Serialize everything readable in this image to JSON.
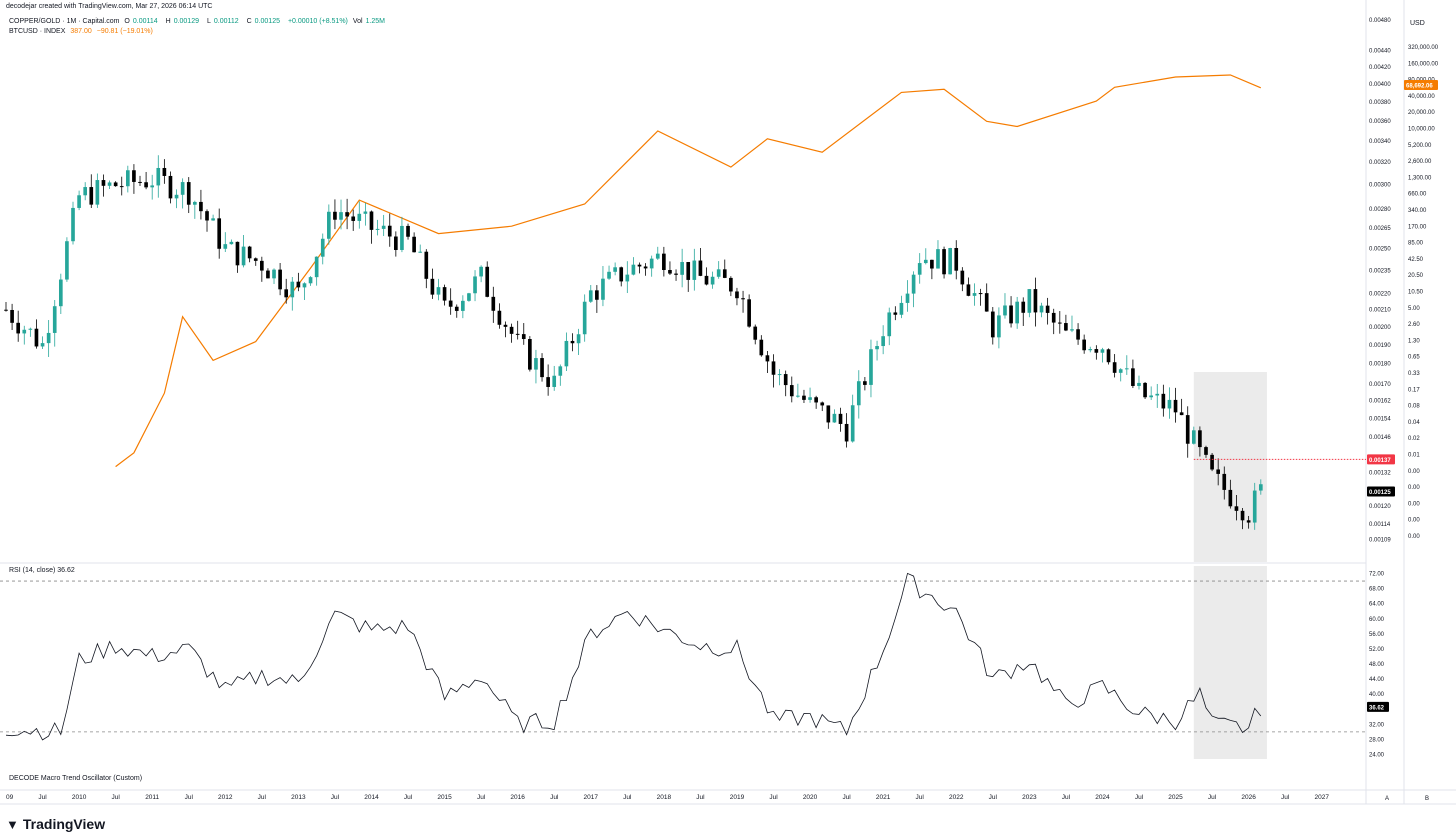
{
  "header": {
    "credit": "decodejar created with TradingView.com, Mar 27, 2026 06:14 UTC"
  },
  "legend": {
    "main_symbol": "COPPER/GOLD · 1M · Capital.com",
    "o_label": "O",
    "o_value": "0.00114",
    "h_label": "H",
    "h_value": "0.00129",
    "l_label": "L",
    "l_value": "0.00112",
    "c_label": "C",
    "c_value": "0.00125",
    "change": "+0.00010 (+8.51%)",
    "vol_label": "Vol",
    "vol_value": "1.25M",
    "btc_symbol": "BTCUSD · INDEX",
    "btc_value": "387.00",
    "btc_change": "−90.81 (−19.01%)"
  },
  "usd_button": "USD",
  "rsi_label": "RSI (14, close) 36.62",
  "osc_label": "DECODE Macro Trend Oscillator (Custom)",
  "footer_logo": "TradingView",
  "scale_buttons": [
    "A",
    "B"
  ],
  "colors": {
    "up": "#26a69a",
    "down": "#000000",
    "btc": "#f57c00",
    "price_tag": "#000000",
    "resistance": "#f23645",
    "highlight": "#ebebeb"
  },
  "price_tags": {
    "btc_last": "68,692.06",
    "resistance": "0.00137",
    "last": "0.00125",
    "rsi_last": "36.62"
  },
  "chart_data": [
    {
      "type": "candlestick",
      "title": "COPPER/GOLD · 1M · Capital.com",
      "x_ticks": [
        "09",
        "Jul",
        "2010",
        "Jul",
        "2011",
        "Jul",
        "2012",
        "Jul",
        "2013",
        "Jul",
        "2014",
        "Jul",
        "2015",
        "Jul",
        "2016",
        "Jul",
        "2017",
        "Jul",
        "2018",
        "Jul",
        "2019",
        "Jul",
        "2020",
        "Jul",
        "2021",
        "Jul",
        "2022",
        "Jul",
        "2023",
        "Jul",
        "2024",
        "Jul",
        "2025",
        "Jul",
        "2026",
        "Jul",
        "2027"
      ],
      "y_ticks": [
        "0.00480",
        "0.00440",
        "0.00420",
        "0.00400",
        "0.00380",
        "0.00360",
        "0.00340",
        "0.00320",
        "0.00300",
        "0.00280",
        "0.00265",
        "0.00250",
        "0.00235",
        "0.00220",
        "0.00210",
        "0.00200",
        "0.00190",
        "0.00180",
        "0.00170",
        "0.00162",
        "0.00154",
        "0.00146",
        "0.00132",
        "0.00120",
        "0.00114",
        "0.00109"
      ],
      "scale": "log",
      "ylim": [
        0.00104,
        0.0048
      ],
      "resistance_level": 0.00137,
      "highlight_range": [
        "2025-04",
        "2026-04"
      ],
      "series": [
        {
          "name": "COPPER/GOLD",
          "approx_monthly_close": [
            [
              "2009-01",
              0.0021
            ],
            [
              "2009-07",
              0.0019
            ],
            [
              "2010-01",
              0.0029
            ],
            [
              "2010-07",
              0.003
            ],
            [
              "2011-01",
              0.00305
            ],
            [
              "2011-07",
              0.00295
            ],
            [
              "2012-01",
              0.0025
            ],
            [
              "2012-07",
              0.0024
            ],
            [
              "2013-01",
              0.0022
            ],
            [
              "2013-07",
              0.0028
            ],
            [
              "2014-01",
              0.00265
            ],
            [
              "2014-07",
              0.00255
            ],
            [
              "2015-01",
              0.0021
            ],
            [
              "2015-07",
              0.0023
            ],
            [
              "2016-01",
              0.0019
            ],
            [
              "2016-07",
              0.0017
            ],
            [
              "2017-01",
              0.0022
            ],
            [
              "2017-07",
              0.00235
            ],
            [
              "2018-01",
              0.00245
            ],
            [
              "2018-07",
              0.0023
            ],
            [
              "2019-01",
              0.00225
            ],
            [
              "2019-07",
              0.00175
            ],
            [
              "2020-01",
              0.0016
            ],
            [
              "2020-07",
              0.0015
            ],
            [
              "2021-01",
              0.002
            ],
            [
              "2021-07",
              0.00245
            ],
            [
              "2022-01",
              0.0024
            ],
            [
              "2022-07",
              0.002
            ],
            [
              "2023-01",
              0.00215
            ],
            [
              "2023-07",
              0.00195
            ],
            [
              "2024-01",
              0.0019
            ],
            [
              "2024-07",
              0.00165
            ],
            [
              "2025-01",
              0.00158
            ],
            [
              "2025-07",
              0.0013
            ],
            [
              "2026-01",
              0.00118
            ],
            [
              "2026-03",
              0.00125
            ]
          ]
        }
      ]
    },
    {
      "type": "line",
      "title": "BTCUSD · INDEX",
      "scale": "log",
      "y_ticks": [
        "320,000.00",
        "160,000.00",
        "80,000.00",
        "40,000.00",
        "20,000.00",
        "10,000.00",
        "5,200.00",
        "2,600.00",
        "1,300.00",
        "660.00",
        "340.00",
        "170.00",
        "85.00",
        "42.50",
        "20.50",
        "10.50",
        "5.00",
        "2.60",
        "1.30",
        "0.65",
        "0.33",
        "0.17",
        "0.08",
        "0.04",
        "0.02",
        "0.01",
        "0.00",
        "0.00",
        "0.00",
        "0.00",
        "0.00",
        "0.00"
      ],
      "series": [
        {
          "name": "BTCUSD · INDEX",
          "x": [
            "2010-07",
            "2010-10",
            "2011-03",
            "2011-06",
            "2011-11",
            "2012-06",
            "2013-03",
            "2013-11",
            "2014-12",
            "2015-12",
            "2016-12",
            "2017-12",
            "2018-12",
            "2019-06",
            "2020-03",
            "2021-04",
            "2021-11",
            "2022-06",
            "2022-11",
            "2023-12",
            "2024-03",
            "2025-01",
            "2025-10",
            "2026-03"
          ],
          "y": [
            0.06,
            0.1,
            0.9,
            15,
            3,
            6,
            90,
            1100,
            320,
            420,
            950,
            14000,
            3700,
            10500,
            6400,
            58000,
            65000,
            20000,
            16500,
            42000,
            70000,
            102000,
            110000,
            68692
          ]
        }
      ]
    },
    {
      "type": "line",
      "title": "RSI (14, close)",
      "last_value": 36.62,
      "y_ticks": [
        "72.00",
        "68.00",
        "64.00",
        "60.00",
        "56.00",
        "52.00",
        "48.00",
        "44.00",
        "40.00",
        "36.00",
        "32.00",
        "28.00",
        "24.00"
      ],
      "ylim": [
        22,
        74
      ],
      "reference_lines": [
        70,
        30
      ],
      "series": [
        {
          "name": "RSI",
          "x": [
            "2009-01",
            "2009-10",
            "2010-01",
            "2010-07",
            "2011-01",
            "2011-07",
            "2012-01",
            "2012-07",
            "2013-01",
            "2013-07",
            "2014-01",
            "2014-07",
            "2015-01",
            "2015-07",
            "2016-01",
            "2016-07",
            "2017-01",
            "2017-07",
            "2018-01",
            "2018-07",
            "2019-01",
            "2019-07",
            "2020-01",
            "2020-07",
            "2021-01",
            "2021-05",
            "2022-01",
            "2022-07",
            "2023-01",
            "2023-07",
            "2024-01",
            "2024-07",
            "2025-01",
            "2025-05",
            "2025-07",
            "2026-01",
            "2026-03"
          ],
          "y": [
            31,
            30,
            49,
            53,
            50,
            52,
            41,
            45,
            43,
            61,
            57,
            58,
            39,
            45,
            32,
            33,
            56,
            62,
            57,
            53,
            52,
            33,
            34,
            30,
            52,
            70,
            62,
            44,
            49,
            37,
            42,
            35,
            33,
            40,
            32,
            31,
            36.62
          ]
        }
      ]
    }
  ]
}
